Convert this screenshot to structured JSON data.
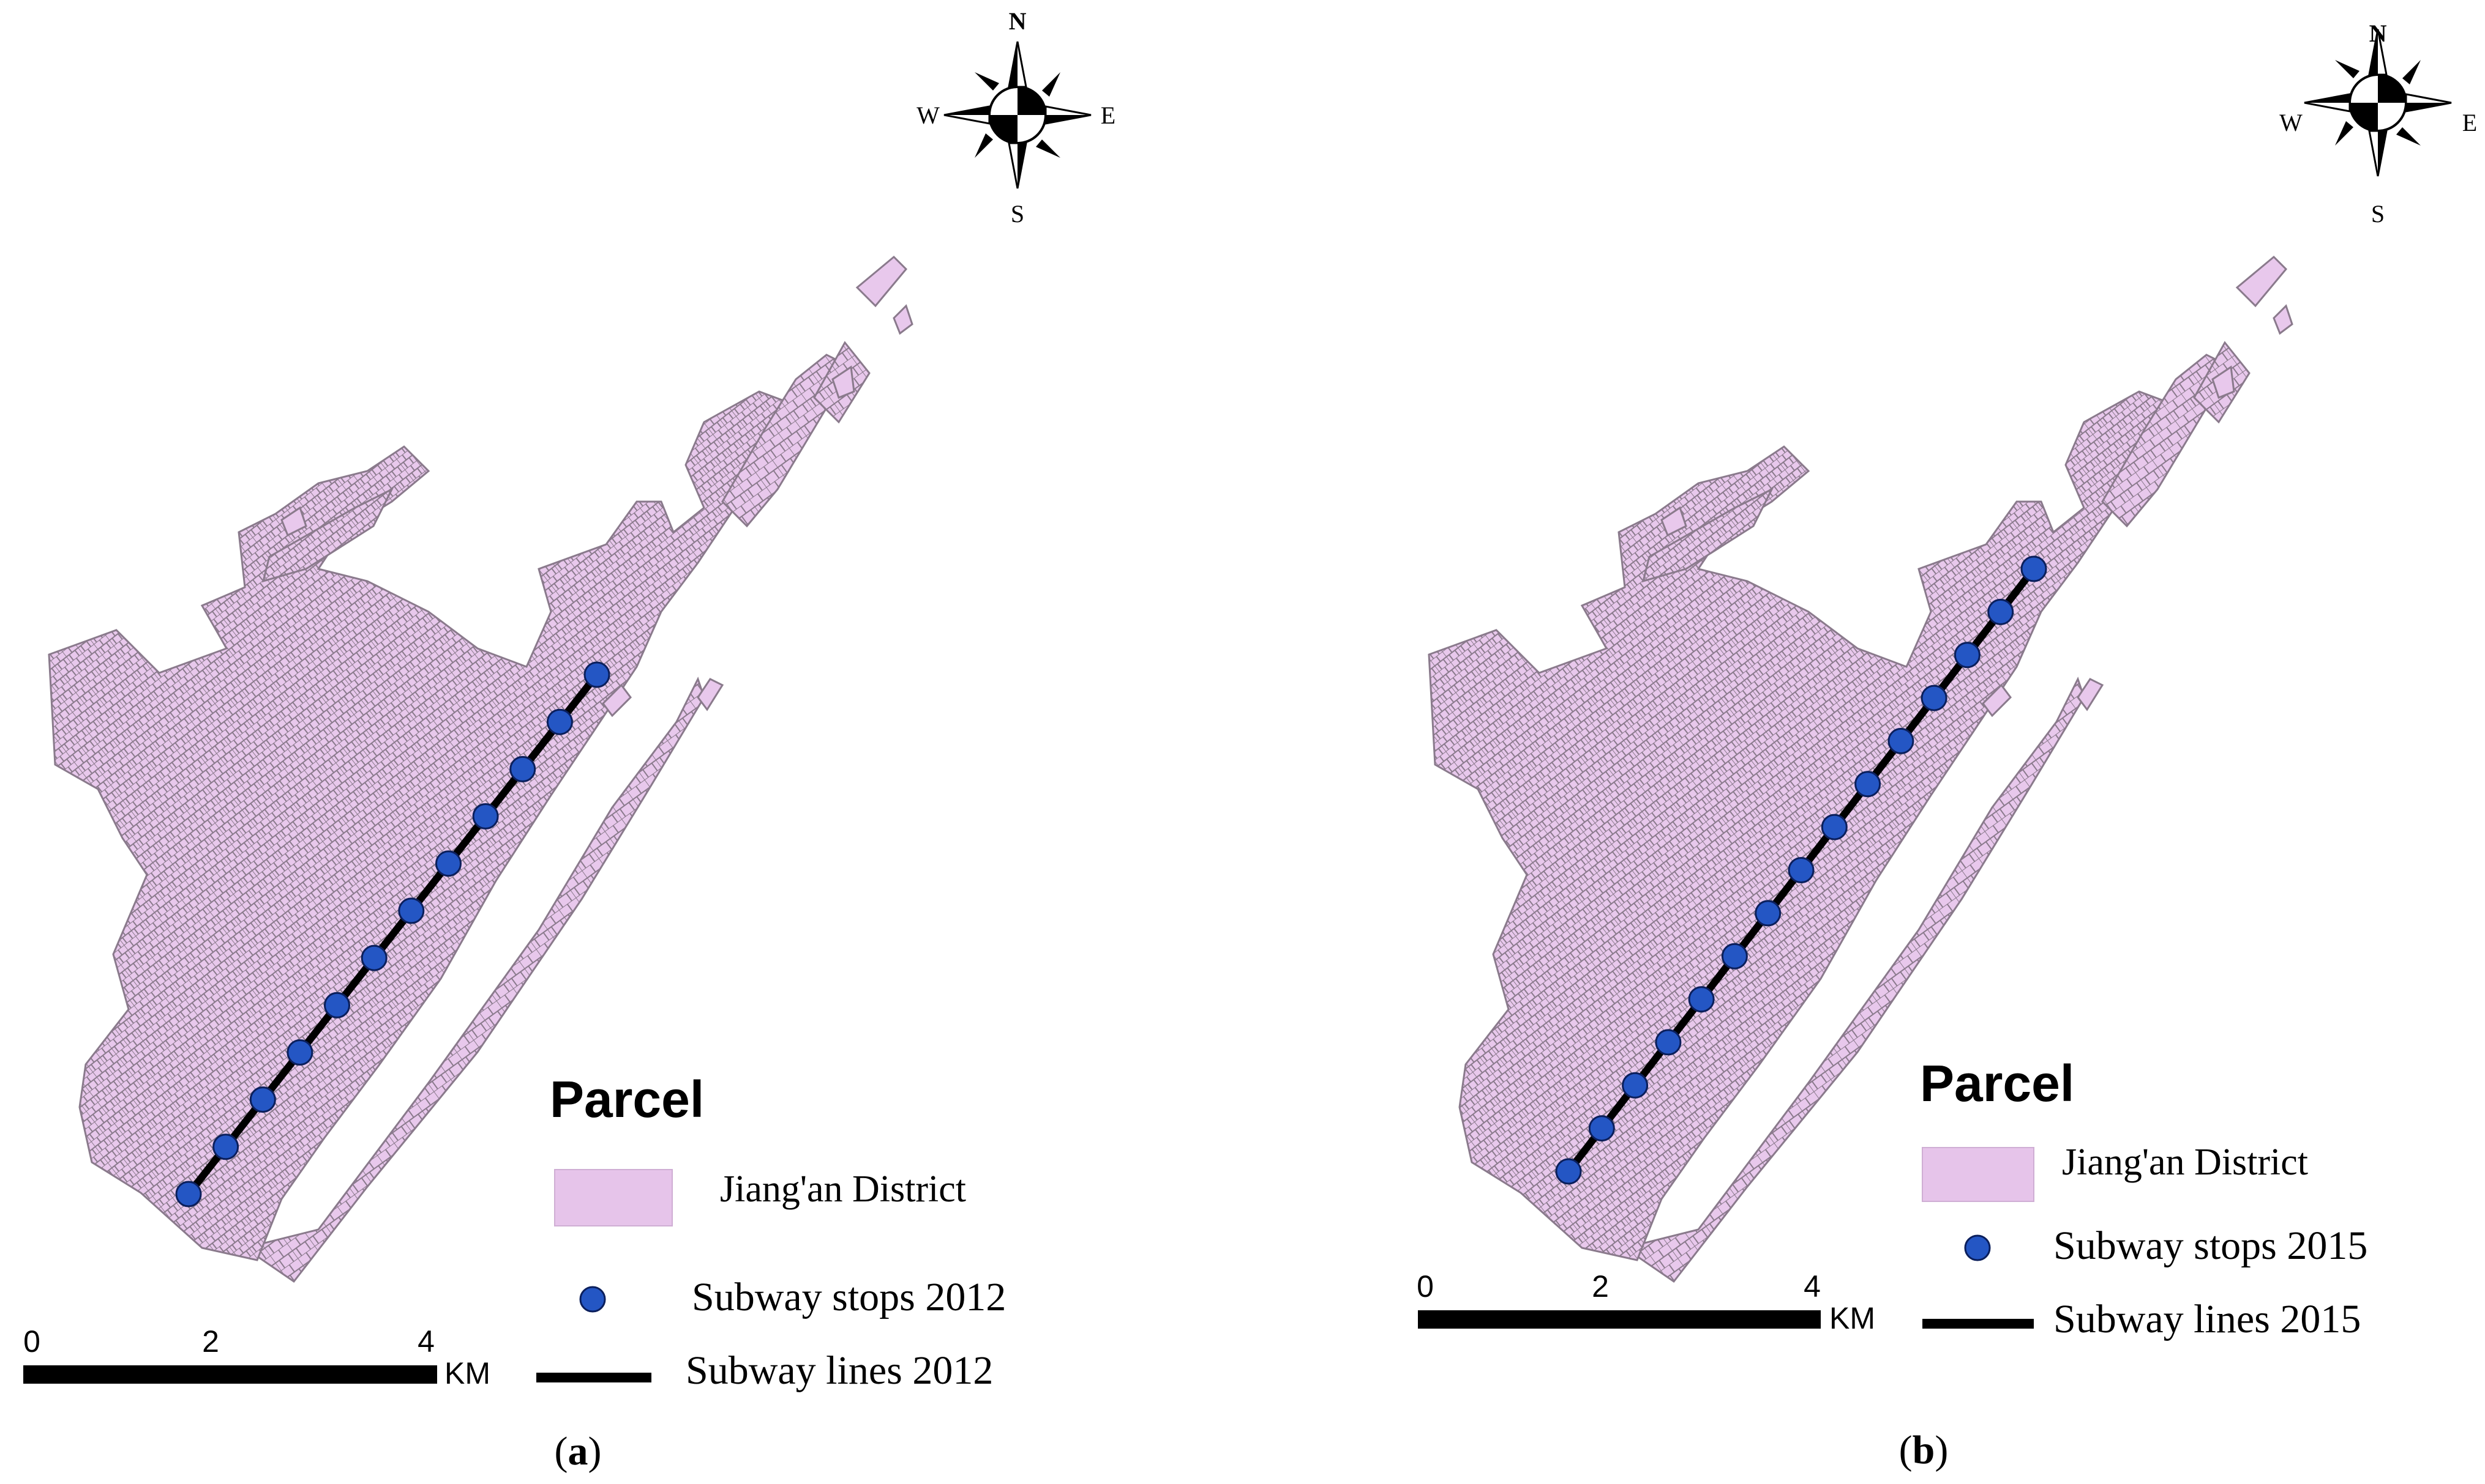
{
  "panels": [
    {
      "id": "a",
      "caption_open": "(",
      "caption_letter": "a",
      "caption_close": ")",
      "compass": {
        "n": "N",
        "s": "S",
        "e": "E",
        "w": "W"
      },
      "legend": {
        "title": "Parcel",
        "district_label": "Jiang'an District",
        "stops_label": "Subway stops 2012",
        "lines_label": "Subway lines 2012"
      },
      "scale": {
        "ticks": [
          "0",
          "2",
          "4"
        ],
        "unit": "KM"
      },
      "stop_count": 12
    },
    {
      "id": "b",
      "caption_open": "(",
      "caption_letter": "b",
      "caption_close": ")",
      "compass": {
        "n": "N",
        "s": "S",
        "e": "E",
        "w": "W"
      },
      "legend": {
        "title": "Parcel",
        "district_label": "Jiang'an District",
        "stops_label": "Subway stops 2015",
        "lines_label": "Subway lines 2015"
      },
      "scale": {
        "ticks": [
          "0",
          "2",
          "4"
        ],
        "unit": "KM"
      },
      "stop_count": 15
    }
  ],
  "colors": {
    "parcel_fill": "#e8c8ec",
    "parcel_stroke": "#8a7a8c",
    "legend_fill": "#e6c4ea",
    "stop_fill": "#2456c4",
    "stop_stroke": "#0b1f5c",
    "line_color": "#000000"
  }
}
